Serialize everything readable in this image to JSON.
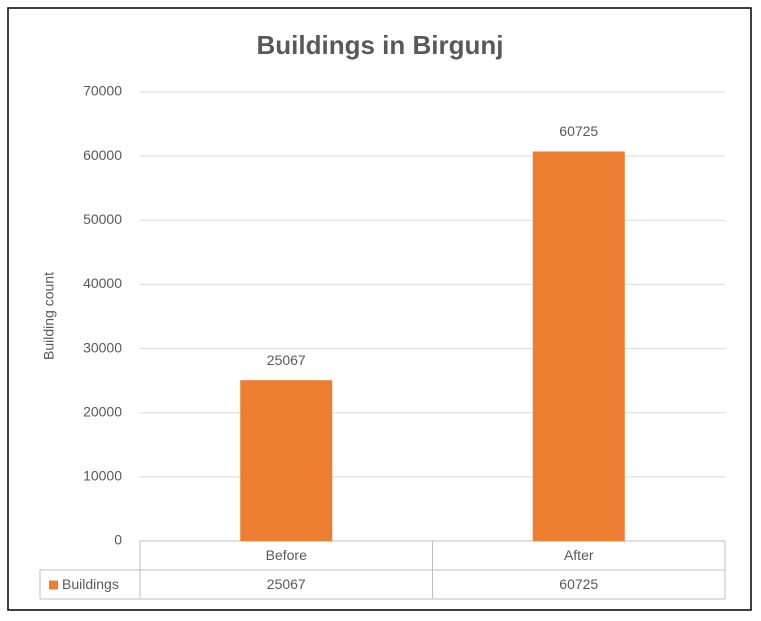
{
  "chart_data": {
    "type": "bar",
    "title": "Buildings in Birgunj",
    "y_label": "Building count",
    "categories": [
      "Before",
      "After"
    ],
    "series": [
      {
        "name": "Buildings",
        "color": "#ed7d31",
        "values": [
          25067,
          60725
        ]
      }
    ],
    "ylim": [
      0,
      70000
    ],
    "yticks": [
      0,
      10000,
      20000,
      30000,
      40000,
      50000,
      60000,
      70000
    ],
    "grid": true,
    "data_labels": true,
    "data_table": true
  }
}
